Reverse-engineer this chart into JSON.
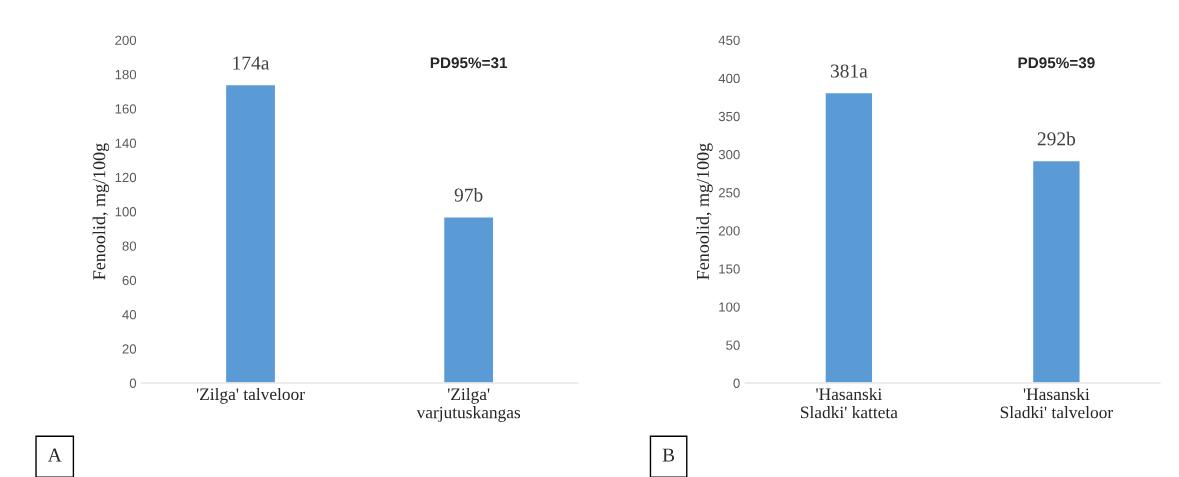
{
  "chart_data": [
    {
      "type": "bar",
      "categories": [
        "'Zilga' talveloor",
        "'Zilga'\nvarjutuskangas"
      ],
      "values": [
        174,
        97
      ],
      "value_labels": [
        "174a",
        "97b"
      ],
      "color": "#5b9bd5",
      "ylabel": "Fenoolid, mg/100g",
      "ylim": [
        0,
        200
      ],
      "yticks": [
        0,
        20,
        40,
        60,
        80,
        100,
        120,
        140,
        160,
        180,
        200
      ],
      "grid": false,
      "annotations": [
        "PD95%=31",
        "A"
      ]
    },
    {
      "type": "bar",
      "categories": [
        "'Hasanski\nSladki' katteta",
        "'Hasanski\nSladki' talveloor"
      ],
      "values": [
        381,
        292
      ],
      "value_labels": [
        "381a",
        "292b"
      ],
      "color": "#5b9bd5",
      "ylabel": "Fenoolid, mg/100g",
      "ylim": [
        0,
        450
      ],
      "yticks": [
        0,
        50,
        100,
        150,
        200,
        250,
        300,
        350,
        400,
        450
      ],
      "grid": false,
      "annotations": [
        "PD95%=39",
        "B"
      ]
    }
  ]
}
